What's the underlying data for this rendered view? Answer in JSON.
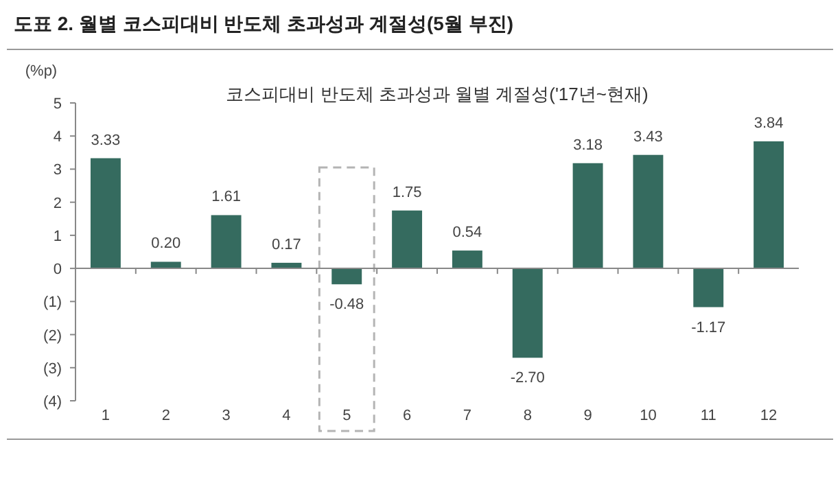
{
  "chart_data": {
    "type": "bar",
    "title": "도표 2. 월별 코스피대비 반도체 초과성과 계절성(5월 부진)",
    "subtitle": "코스피대비 반도체 초과성과 월별 계절성('17년~현재)",
    "ylabel": "(%p)",
    "categories": [
      "1",
      "2",
      "3",
      "4",
      "5",
      "6",
      "7",
      "8",
      "9",
      "10",
      "11",
      "12"
    ],
    "values": [
      3.33,
      0.2,
      1.61,
      0.17,
      -0.48,
      1.75,
      0.54,
      -2.7,
      3.18,
      3.43,
      -1.17,
      3.84
    ],
    "color": "#356b5f",
    "value_labels": [
      "3.33",
      "0.20",
      "1.61",
      "0.17",
      "-0.48",
      "1.75",
      "0.54",
      "-2.70",
      "3.18",
      "3.43",
      "-1.17",
      "3.84"
    ],
    "ylim": [
      -4,
      5
    ],
    "yticks": [
      {
        "value": -4,
        "label": "(4)"
      },
      {
        "value": -3,
        "label": "(3)"
      },
      {
        "value": -2,
        "label": "(2)"
      },
      {
        "value": -1,
        "label": "(1)"
      },
      0,
      1,
      2,
      3,
      4,
      5
    ],
    "xlabel": null
  }
}
